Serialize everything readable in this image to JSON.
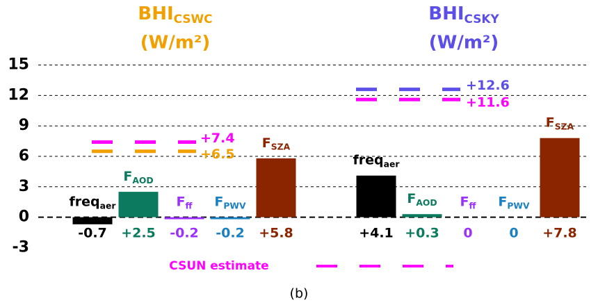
{
  "chart_data": {
    "type": "bar",
    "ylim": [
      -4,
      16
    ],
    "yticks": [
      15,
      12,
      9,
      6,
      3,
      0,
      -3
    ],
    "grid": true,
    "panels": [
      {
        "title": {
          "main": "BHI",
          "sub": "CSWC",
          "unit": "(W/m²)"
        },
        "title_color": "#f0a000",
        "categories": [
          {
            "main": "freq",
            "sub": "aer"
          },
          {
            "main": "F",
            "sub": "AOD"
          },
          {
            "main": "F",
            "sub": "ff"
          },
          {
            "main": "F",
            "sub": "PWV"
          },
          {
            "main": "F",
            "sub": "SZA"
          }
        ],
        "colors": [
          "#000000",
          "#0b7a5e",
          "#9b30ff",
          "#1b80c0",
          "#8b2500"
        ],
        "values": [
          -0.7,
          2.5,
          -0.2,
          -0.2,
          5.8
        ],
        "value_labels": [
          "-0.7",
          "+2.5",
          "-0.2",
          "-0.2",
          "+5.8"
        ],
        "reference_lines": [
          {
            "value": 7.4,
            "label": "+7.4",
            "color": "#ff00ff"
          },
          {
            "value": 6.5,
            "label": "+6.5",
            "color": "#f0a000"
          }
        ]
      },
      {
        "title": {
          "main": "BHI",
          "sub": "CSKY",
          "unit": "(W/m²)"
        },
        "title_color": "#5b4fe8",
        "categories": [
          {
            "main": "freq",
            "sub": "aer"
          },
          {
            "main": "F",
            "sub": "AOD"
          },
          {
            "main": "F",
            "sub": "ff"
          },
          {
            "main": "F",
            "sub": "PWV"
          },
          {
            "main": "F",
            "sub": "SZA"
          }
        ],
        "colors": [
          "#000000",
          "#0b7a5e",
          "#9b30ff",
          "#1b80c0",
          "#8b2500"
        ],
        "values": [
          4.1,
          0.3,
          0,
          0,
          7.8
        ],
        "value_labels": [
          "+4.1",
          "+0.3",
          "0",
          "0",
          "+7.8"
        ],
        "reference_lines": [
          {
            "value": 12.6,
            "label": "+12.6",
            "color": "#5b4fe8"
          },
          {
            "value": 11.6,
            "label": "+11.6",
            "color": "#ff00ff"
          }
        ]
      }
    ],
    "annotation": {
      "text": "CSUN estimate",
      "color": "#ff00ff"
    },
    "caption": "(b)"
  }
}
